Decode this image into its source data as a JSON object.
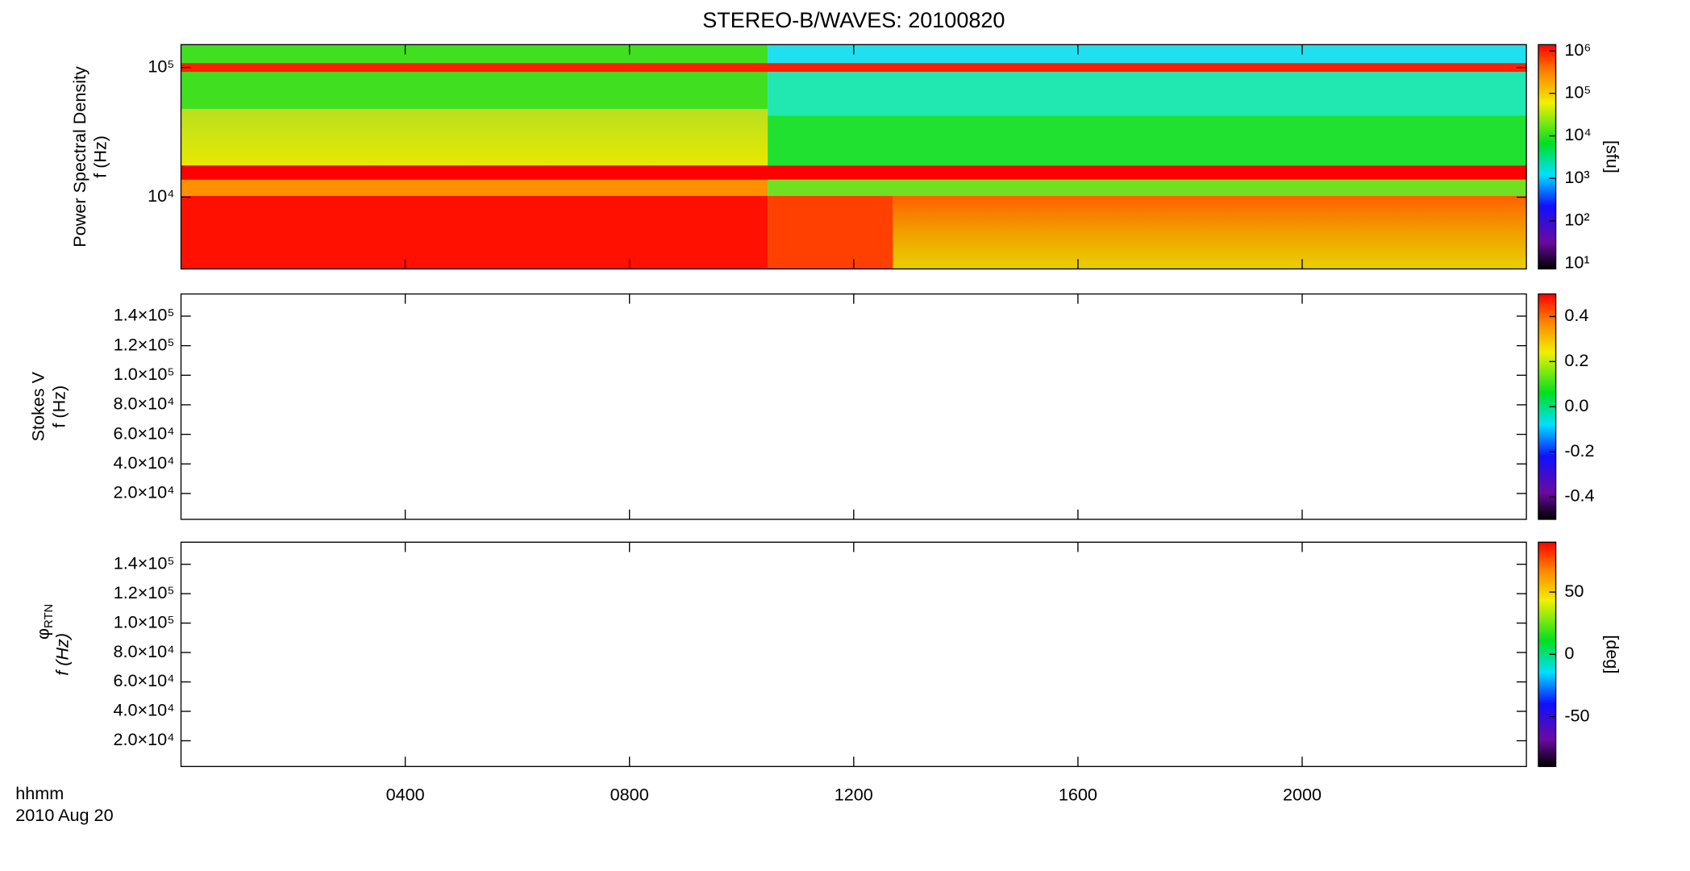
{
  "title": "STEREO-B/WAVES: 20100820",
  "time_axis": {
    "xlim": [
      0,
      24
    ],
    "xticks": [
      {
        "value": 4,
        "label": "0400"
      },
      {
        "value": 8,
        "label": "0800"
      },
      {
        "value": 12,
        "label": "1200"
      },
      {
        "value": 16,
        "label": "1600"
      },
      {
        "value": 20,
        "label": "2000"
      }
    ],
    "unit_label": "hhmm",
    "date_label": "2010 Aug 20"
  },
  "chart_data": [
    {
      "type": "heatmap",
      "ylabel": [
        "Power Spectral Density",
        "f (Hz)"
      ],
      "log_y": true,
      "ylim": [
        2800,
        150000
      ],
      "yticks": [
        {
          "value": 10000,
          "label": "10⁴"
        },
        {
          "value": 100000,
          "label": "10⁵"
        }
      ],
      "colorbar": {
        "log": true,
        "lim": [
          7.4,
          1400000
        ],
        "label": "[sfu]",
        "ticks": [
          {
            "value": 10,
            "label": "10¹"
          },
          {
            "value": 100,
            "label": "10²"
          },
          {
            "value": 1000,
            "label": "10³"
          },
          {
            "value": 10000,
            "label": "10⁴"
          },
          {
            "value": 100000,
            "label": "10⁵"
          },
          {
            "value": 1000000,
            "label": "10⁶"
          }
        ]
      }
    },
    {
      "type": "heatmap",
      "ylabel": [
        "Stokes V",
        "f (Hz)"
      ],
      "log_y": false,
      "ylim": [
        2500,
        155000
      ],
      "yticks": [
        {
          "value": 20000,
          "label": "2.0×10⁴"
        },
        {
          "value": 40000,
          "label": "4.0×10⁴"
        },
        {
          "value": 60000,
          "label": "6.0×10⁴"
        },
        {
          "value": 80000,
          "label": "8.0×10⁴"
        },
        {
          "value": 100000,
          "label": "1.0×10⁵"
        },
        {
          "value": 120000,
          "label": "1.2×10⁵"
        },
        {
          "value": 140000,
          "label": "1.4×10⁵"
        }
      ],
      "colorbar": {
        "log": false,
        "lim": [
          -0.5,
          0.5
        ],
        "ticks": [
          -0.4,
          -0.2,
          {
            "value": 0,
            "label": "0.0"
          },
          0.2,
          0.4
        ]
      }
    },
    {
      "type": "heatmap",
      "ylabel": [
        "φ",
        "RTN",
        "f (Hz)"
      ],
      "log_y": false,
      "ylim": [
        2500,
        155000
      ],
      "yticks": [
        {
          "value": 20000,
          "label": "2.0×10⁴"
        },
        {
          "value": 40000,
          "label": "4.0×10⁴"
        },
        {
          "value": 60000,
          "label": "6.0×10⁴"
        },
        {
          "value": 80000,
          "label": "8.0×10⁴"
        },
        {
          "value": 100000,
          "label": "1.0×10⁵"
        },
        {
          "value": 120000,
          "label": "1.2×10⁵"
        },
        {
          "value": 140000,
          "label": "1.4×10⁵"
        }
      ],
      "colorbar": {
        "log": false,
        "lim": [
          -90,
          90
        ],
        "label": "[deg]",
        "ticks": [
          -50,
          0,
          50
        ]
      }
    }
  ]
}
